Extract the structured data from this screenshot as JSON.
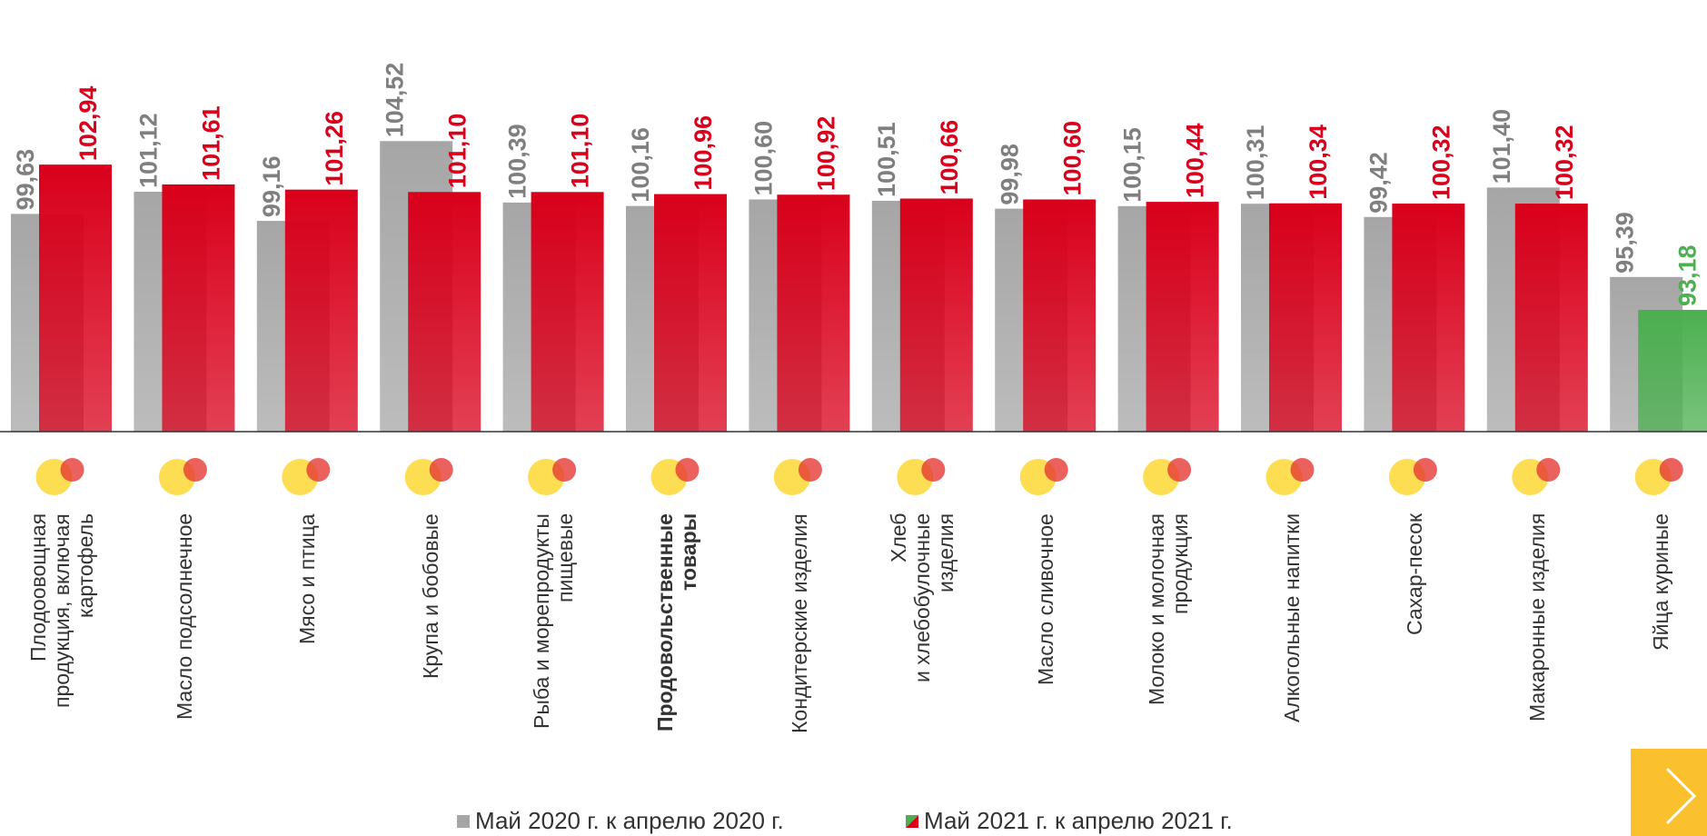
{
  "chart_data": {
    "type": "bar",
    "categories": [
      "Плодоовощная\nпродукция, включая\nкартофель",
      "Масло подсолнечное",
      "Мясо и птица",
      "Крупа и бобовые",
      "Рыба и морепродукты\nпищевые",
      "Продовольственные\nтовары",
      "Кондитерские изделия",
      "Хлеб\nи хлебобулочные\nизделия",
      "Масло сливочное",
      "Молоко и молочная\nпродукция",
      "Алкогольные напитки",
      "Сахар-песок",
      "Макаронные изделия",
      "Яйца куриные"
    ],
    "series": [
      {
        "name": "Май 2020 г. к апрелю 2020 г.",
        "color": "#a6a6a6",
        "label_color": "#7f7f7f",
        "values": [
          99.63,
          101.12,
          99.16,
          104.52,
          100.39,
          100.16,
          100.6,
          100.51,
          99.98,
          100.15,
          100.31,
          99.42,
          101.4,
          95.39
        ],
        "value_labels": [
          "99,63",
          "101,12",
          "99,16",
          "104,52",
          "100,39",
          "100,16",
          "100,60",
          "100,51",
          "99,98",
          "100,15",
          "100,31",
          "99,42",
          "101,40",
          "95,39"
        ]
      },
      {
        "name": "Май 2021 г. к апрелю 2021 г.",
        "color": "#d9001b",
        "colors": [
          "#d9001b",
          "#d9001b",
          "#d9001b",
          "#d9001b",
          "#d9001b",
          "#d9001b",
          "#d9001b",
          "#d9001b",
          "#d9001b",
          "#d9001b",
          "#d9001b",
          "#d9001b",
          "#d9001b",
          "#4caf50"
        ],
        "values": [
          102.94,
          101.61,
          101.26,
          101.1,
          101.1,
          100.96,
          100.92,
          100.66,
          100.6,
          100.44,
          100.34,
          100.32,
          100.32,
          93.18
        ],
        "value_labels": [
          "102,94",
          "101,61",
          "101,26",
          "101,10",
          "101,10",
          "100,96",
          "100,92",
          "100,66",
          "100,60",
          "100,44",
          "100,34",
          "100,32",
          "100,32",
          "93,18"
        ]
      }
    ],
    "ylim": [
      85,
      114
    ],
    "legend": "bottom"
  }
}
